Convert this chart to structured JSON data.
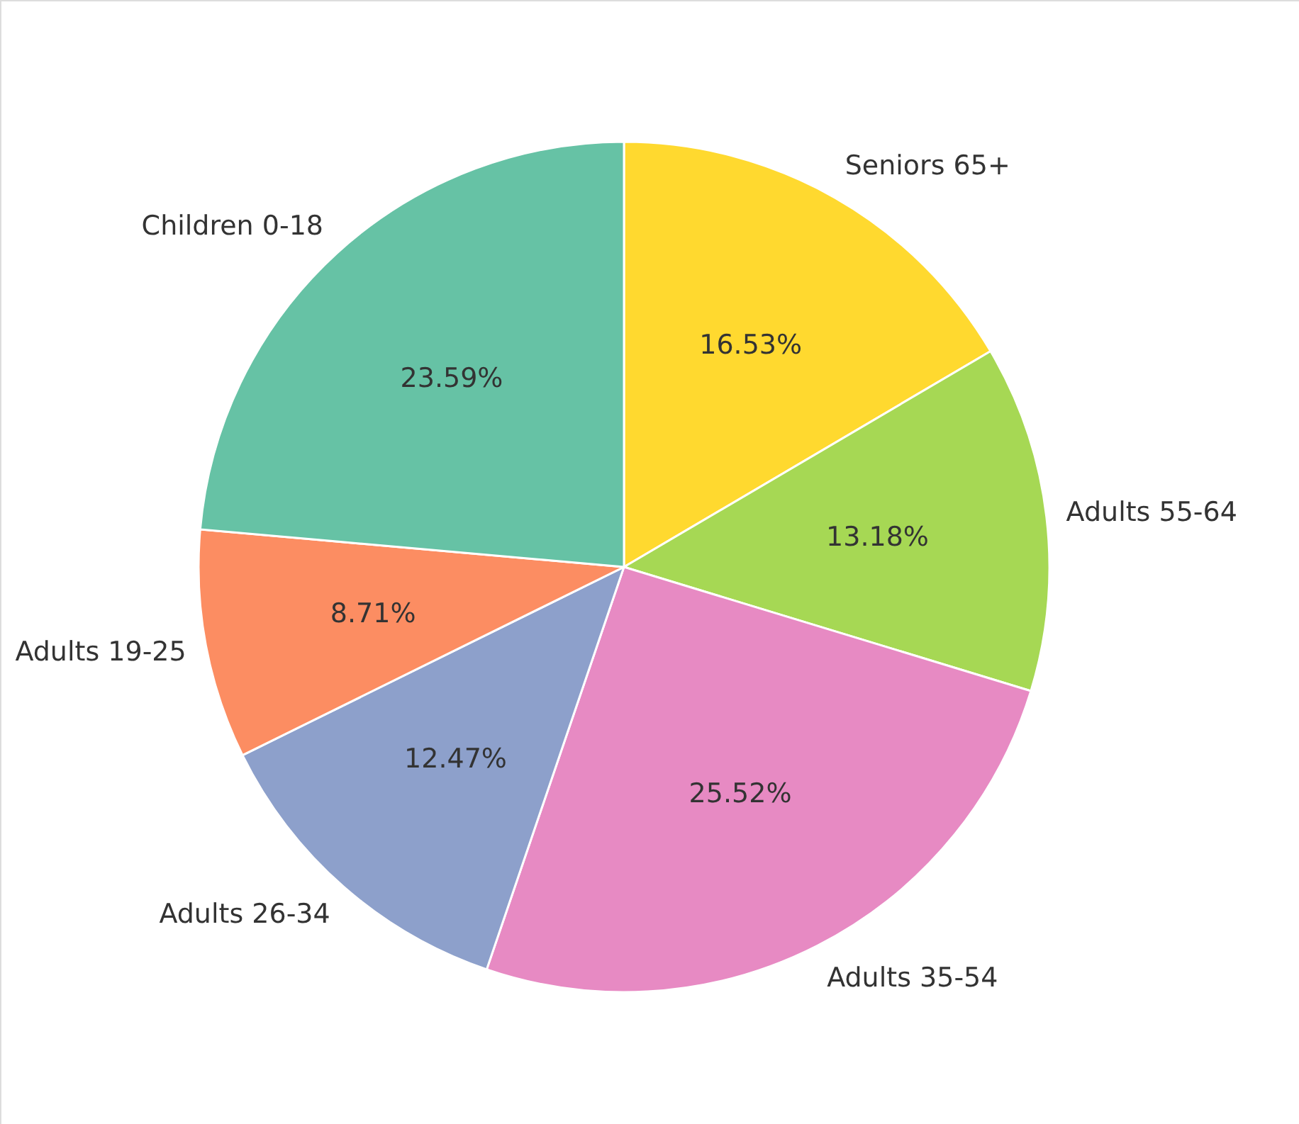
{
  "chart_data": {
    "type": "pie",
    "categories": [
      "Seniors 65+",
      "Adults 55-64",
      "Adults 35-54",
      "Adults 26-34",
      "Adults 19-25",
      "Children 0-18"
    ],
    "values": [
      16.53,
      13.18,
      25.52,
      12.47,
      8.71,
      23.59
    ],
    "colors": [
      "#ffd92f",
      "#a6d854",
      "#e78ac3",
      "#8da0cb",
      "#fc8d62",
      "#66c2a5"
    ],
    "value_labels": [
      "16.53%",
      "13.18%",
      "25.52%",
      "12.47%",
      "8.71%",
      "23.59%"
    ]
  }
}
